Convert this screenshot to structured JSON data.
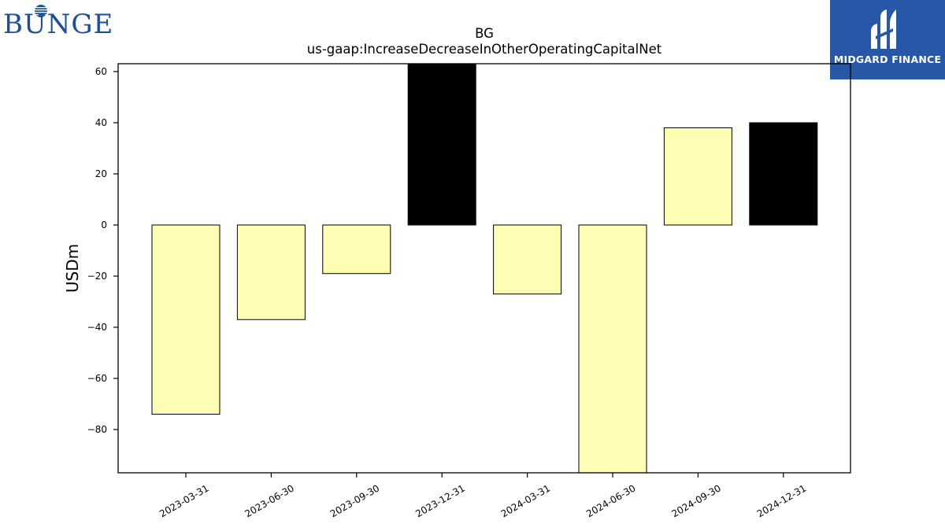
{
  "logos": {
    "left_text": "BUNGE",
    "right_text": "MIDGARD FINANCE"
  },
  "colors": {
    "bar_primary": "#fdfdb3",
    "bar_highlight": "#000000",
    "bunge_blue": "#1b4e9b",
    "midgard_blue": "#2957a8"
  },
  "chart_data": {
    "type": "bar",
    "title": "BG",
    "subtitle": "us-gaap:IncreaseDecreaseInOtherOperatingCapitalNet",
    "xlabel": "",
    "ylabel": "USDm",
    "categories": [
      "2023-03-31",
      "2023-06-30",
      "2023-09-30",
      "2023-12-31",
      "2024-03-31",
      "2024-06-30",
      "2024-09-30",
      "2024-12-31"
    ],
    "values": [
      -74,
      -37,
      -19,
      63,
      -27,
      -97,
      38,
      40
    ],
    "highlight": [
      false,
      false,
      false,
      true,
      false,
      false,
      false,
      true
    ],
    "ylim": [
      -96,
      60
    ],
    "yticks": [
      60,
      40,
      20,
      0,
      -20,
      -40,
      -60,
      -80
    ],
    "ytick_labels": [
      "60",
      "40",
      "20",
      "0",
      "−20",
      "−40",
      "−60",
      "−80"
    ],
    "grid": false,
    "legend": "none"
  }
}
